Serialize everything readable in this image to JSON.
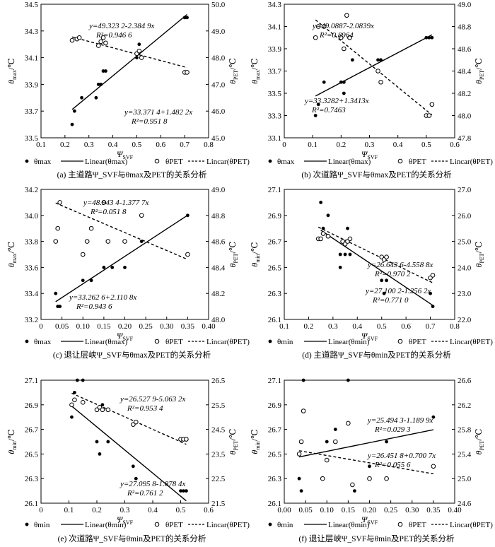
{
  "charts": [
    {
      "caption": "(a) 主道路Ψ_SVF与θmax及PET的关系分析",
      "y_label_left": "θmax/℃",
      "y_label_right": "θPET/℃",
      "x_label": "ΨSVF",
      "legend": [
        "θmax",
        "Linear(θmax)",
        "θPET",
        "Lincar(θPET)"
      ]
    },
    {
      "caption": "(b) 次道路Ψ_SVF与θmax及PET的关系分析",
      "y_label_left": "θmax/℃",
      "y_label_right": "θPET/℃",
      "x_label": "ΨSVF",
      "legend": [
        "θmax",
        "Linear(θmax)",
        "θPET",
        "Lincar(θPET)"
      ]
    },
    {
      "caption": "(c) 退让层峡Ψ_SVF与θmax及PET的关系分析",
      "y_label_left": "θmax/℃",
      "y_label_right": "θPET/℃",
      "x_label": "ΨSVF",
      "legend": [
        "θmax",
        "Linear(θmax)",
        "θPET",
        "Lincar(θPET)"
      ]
    },
    {
      "caption": "(d) 主道路Ψ_SVF与θmin及PET的关系分析",
      "y_label_left": "θmin/℃",
      "y_label_right": "θPET/℃",
      "x_label": "ΨSVF",
      "legend": [
        "θmin",
        "Linear(θmin)",
        "θPET",
        "Lincar(θPET)"
      ]
    },
    {
      "caption": "(e) 次道路Ψ_SVF与θmin及PET的关系分析",
      "y_label_left": "θmin/℃",
      "y_label_right": "θPET/℃",
      "x_label": "ΨSVF",
      "legend": [
        "θmin",
        "Linear(θmin)",
        "θPET",
        "Lincar(θPET)"
      ]
    },
    {
      "caption": "(f) 退让层峡Ψ_SVF与θmin及PET的关系分析",
      "y_label_left": "θmin/℃",
      "y_label_right": "θPET/℃",
      "x_label": "ΨSVF",
      "legend": [
        "θmin",
        "Linear(θmin)",
        "θPET",
        "Lincar(θPET)"
      ]
    }
  ],
  "chart_data": [
    {
      "type": "scatter",
      "x_ticks": [
        "0.1",
        "0.2",
        "0.3",
        "0.4",
        "0.5",
        "0.6",
        "0.7",
        "0.8"
      ],
      "xlim": [
        0.1,
        0.8
      ],
      "ylim_left": [
        33.5,
        34.5
      ],
      "y_ticks_left": [
        "33.5",
        "33.7",
        "33.9",
        "34.1",
        "34.3",
        "34.5"
      ],
      "ylim_right": [
        45.0,
        50.0
      ],
      "y_ticks_right": [
        "45.0",
        "46.0",
        "47.0",
        "48.0",
        "49.0",
        "50.0"
      ],
      "eq_left": "y=33.371 4+1.482 2x",
      "r2_left": "R²=0.951 8",
      "eq_right": "y=49.323 2-2.384 9x",
      "r2_right": "R²=0.946 6",
      "fit_left": [
        33.371,
        1.4822
      ],
      "fit_right": [
        49.3232,
        -2.3849
      ],
      "series_left": [
        [
          0.23,
          33.6
        ],
        [
          0.24,
          33.7
        ],
        [
          0.27,
          33.8
        ],
        [
          0.33,
          33.8
        ],
        [
          0.34,
          33.9
        ],
        [
          0.35,
          33.9
        ],
        [
          0.36,
          34.0
        ],
        [
          0.37,
          34.0
        ],
        [
          0.5,
          34.1
        ],
        [
          0.51,
          34.2
        ],
        [
          0.7,
          34.4
        ],
        [
          0.71,
          34.4
        ]
      ],
      "series_right": [
        [
          0.23,
          48.65
        ],
        [
          0.25,
          48.7
        ],
        [
          0.26,
          48.75
        ],
        [
          0.34,
          48.45
        ],
        [
          0.35,
          48.6
        ],
        [
          0.36,
          48.75
        ],
        [
          0.37,
          48.55
        ],
        [
          0.5,
          48.15
        ],
        [
          0.51,
          48.25
        ],
        [
          0.52,
          48.0
        ],
        [
          0.7,
          47.45
        ],
        [
          0.71,
          47.45
        ]
      ]
    },
    {
      "type": "scatter",
      "x_ticks": [
        "0",
        "0.1",
        "0.2",
        "0.3",
        "0.4",
        "0.5",
        "0.6"
      ],
      "xlim": [
        0,
        0.6
      ],
      "ylim_left": [
        33.1,
        34.3
      ],
      "y_ticks_left": [
        "33.1",
        "33.3",
        "33.5",
        "33.7",
        "33.9",
        "34.1",
        "34.3"
      ],
      "ylim_right": [
        47.8,
        49.0
      ],
      "y_ticks_right": [
        "47.8",
        "48.0",
        "48.2",
        "48.4",
        "48.6",
        "48.8",
        "49.0"
      ],
      "eq_left": "y=33.3282+1.3413x",
      "r2_left": "R²=0.7463",
      "eq_right": "y=49.0887-2.0839x",
      "r2_right": "R²=0.8964",
      "fit_left": [
        33.3282,
        1.3413
      ],
      "fit_right": [
        49.0887,
        -2.0839
      ],
      "series_left": [
        [
          0.11,
          33.3
        ],
        [
          0.12,
          33.4
        ],
        [
          0.14,
          33.6
        ],
        [
          0.2,
          33.6
        ],
        [
          0.21,
          33.6
        ],
        [
          0.21,
          33.5
        ],
        [
          0.24,
          33.8
        ],
        [
          0.33,
          33.8
        ],
        [
          0.34,
          33.8
        ],
        [
          0.5,
          34.0
        ],
        [
          0.51,
          34.0
        ],
        [
          0.52,
          34.0
        ]
      ],
      "series_right": [
        [
          0.11,
          48.7
        ],
        [
          0.12,
          48.8
        ],
        [
          0.14,
          48.8
        ],
        [
          0.2,
          48.7
        ],
        [
          0.21,
          48.6
        ],
        [
          0.22,
          48.9
        ],
        [
          0.23,
          48.7
        ],
        [
          0.33,
          48.4
        ],
        [
          0.34,
          48.3
        ],
        [
          0.5,
          48.0
        ],
        [
          0.51,
          48.0
        ],
        [
          0.52,
          48.1
        ]
      ]
    },
    {
      "type": "scatter",
      "x_ticks": [
        "0",
        "0.05",
        "0.10",
        "0.15",
        "0.20",
        "0.25",
        "0.30",
        "0.35",
        "0.40"
      ],
      "xlim": [
        0,
        0.4
      ],
      "ylim_left": [
        33.2,
        34.2
      ],
      "y_ticks_left": [
        "33.2",
        "33.4",
        "33.6",
        "33.8",
        "34.0",
        "34.2"
      ],
      "ylim_right": [
        48.0,
        49.0
      ],
      "y_ticks_right": [
        "48.0",
        "48.2",
        "48.4",
        "48.6",
        "48.8",
        "49.0"
      ],
      "eq_left": "y=33.262 6+2.110 8x",
      "r2_left": "R²=0.943 6",
      "eq_right": "y=48.943 4-1.377 7x",
      "r2_right": "R²=0.051 8",
      "fit_left": [
        33.2626,
        2.1108
      ],
      "fit_right": [
        48.9434,
        -1.3777
      ],
      "series_left": [
        [
          0.035,
          33.4
        ],
        [
          0.04,
          33.3
        ],
        [
          0.045,
          33.3
        ],
        [
          0.1,
          33.5
        ],
        [
          0.12,
          33.5
        ],
        [
          0.15,
          33.6
        ],
        [
          0.17,
          33.6
        ],
        [
          0.2,
          33.6
        ],
        [
          0.24,
          33.8
        ],
        [
          0.35,
          34.0
        ]
      ],
      "series_right": [
        [
          0.035,
          48.6
        ],
        [
          0.04,
          48.7
        ],
        [
          0.045,
          48.9
        ],
        [
          0.1,
          48.5
        ],
        [
          0.11,
          48.6
        ],
        [
          0.12,
          48.7
        ],
        [
          0.15,
          48.9
        ],
        [
          0.16,
          48.6
        ],
        [
          0.2,
          48.6
        ],
        [
          0.24,
          48.8
        ],
        [
          0.35,
          48.5
        ]
      ]
    },
    {
      "type": "scatter",
      "x_ticks": [
        "0.1",
        "0.2",
        "0.3",
        "0.4",
        "0.5",
        "0.6",
        "0.7",
        "0.8"
      ],
      "xlim": [
        0.1,
        0.8
      ],
      "ylim_left": [
        26.1,
        27.1
      ],
      "y_ticks_left": [
        "26.1",
        "26.3",
        "26.5",
        "26.7",
        "26.9",
        "27.1"
      ],
      "ylim_right": [
        22.0,
        27.0
      ],
      "y_ticks_right": [
        "22.0",
        "23.0",
        "24.0",
        "25.0",
        "26.0",
        "27.0"
      ],
      "eq_left": "y=27.100 2-1.256 2x",
      "r2_left": "R²=0.771 0",
      "eq_right": "y=26.643 6-4.558 8x",
      "r2_right": "R²=0.970 2",
      "fit_left": [
        27.1002,
        -1.2562
      ],
      "fit_right": [
        26.6436,
        -4.5588
      ],
      "series_left": [
        [
          0.25,
          27.0
        ],
        [
          0.26,
          26.8
        ],
        [
          0.28,
          26.9
        ],
        [
          0.33,
          26.6
        ],
        [
          0.33,
          26.5
        ],
        [
          0.34,
          26.7
        ],
        [
          0.35,
          26.6
        ],
        [
          0.36,
          26.8
        ],
        [
          0.37,
          26.6
        ],
        [
          0.5,
          26.4
        ],
        [
          0.51,
          26.3
        ],
        [
          0.52,
          26.4
        ],
        [
          0.7,
          26.3
        ],
        [
          0.71,
          26.2
        ]
      ],
      "series_right": [
        [
          0.24,
          25.1
        ],
        [
          0.25,
          25.1
        ],
        [
          0.26,
          25.3
        ],
        [
          0.28,
          25.2
        ],
        [
          0.34,
          25.0
        ],
        [
          0.35,
          24.9
        ],
        [
          0.36,
          25.0
        ],
        [
          0.37,
          25.1
        ],
        [
          0.5,
          24.4
        ],
        [
          0.51,
          24.3
        ],
        [
          0.52,
          24.4
        ],
        [
          0.7,
          23.6
        ],
        [
          0.71,
          23.7
        ]
      ]
    },
    {
      "type": "scatter",
      "x_ticks": [
        "0",
        "0.1",
        "0.2",
        "0.3",
        "0.4",
        "0.5",
        "0.6"
      ],
      "xlim": [
        0,
        0.6
      ],
      "ylim_left": [
        26.1,
        27.1
      ],
      "y_ticks_left": [
        "26.1",
        "26.3",
        "26.5",
        "26.7",
        "26.9",
        "27.1"
      ],
      "ylim_right": [
        21.5,
        26.5
      ],
      "y_ticks_right": [
        "21.5",
        "22.5",
        "23.5",
        "24.5",
        "25.5",
        "26.5"
      ],
      "eq_left": "y=27.095 8-1.878 4x",
      "r2_left": "R²=0.761 2",
      "eq_right": "y=26.527 9-5.063 2x",
      "r2_right": "R²=0.953 4",
      "fit_left": [
        27.0958,
        -1.8784
      ],
      "fit_right": [
        26.5279,
        -5.0632
      ],
      "series_left": [
        [
          0.11,
          26.8
        ],
        [
          0.12,
          27.0
        ],
        [
          0.13,
          27.1
        ],
        [
          0.15,
          27.1
        ],
        [
          0.2,
          26.6
        ],
        [
          0.21,
          26.5
        ],
        [
          0.22,
          26.9
        ],
        [
          0.24,
          26.6
        ],
        [
          0.33,
          26.4
        ],
        [
          0.34,
          26.3
        ],
        [
          0.5,
          26.2
        ],
        [
          0.51,
          26.2
        ],
        [
          0.52,
          26.2
        ]
      ],
      "series_right": [
        [
          0.11,
          25.5
        ],
        [
          0.12,
          25.7
        ],
        [
          0.15,
          25.6
        ],
        [
          0.2,
          25.3
        ],
        [
          0.21,
          25.4
        ],
        [
          0.22,
          25.3
        ],
        [
          0.24,
          25.3
        ],
        [
          0.33,
          24.7
        ],
        [
          0.34,
          24.8
        ],
        [
          0.5,
          24.1
        ],
        [
          0.51,
          24.1
        ],
        [
          0.52,
          24.1
        ]
      ]
    },
    {
      "type": "scatter",
      "x_ticks": [
        "0.00",
        "0.05",
        "0.10",
        "0.15",
        "0.20",
        "0.25",
        "0.30",
        "0.35",
        "0.40"
      ],
      "xlim": [
        0,
        0.4
      ],
      "ylim_left": [
        26.1,
        27.1
      ],
      "y_ticks_left": [
        "26.1",
        "26.3",
        "26.5",
        "26.7",
        "26.9",
        "27.1"
      ],
      "ylim_right": [
        24.6,
        26.6
      ],
      "y_ticks_right": [
        "24.6",
        "25.0",
        "25.4",
        "25.8",
        "26.2",
        "26.6"
      ],
      "eq_left": "y=26.451 8+0.700 7x",
      "r2_left": "R²=0.055 6",
      "eq_right": "y=25.494 3-1.189 9x",
      "r2_right": "R²=0.029 3",
      "fit_left": [
        26.4518,
        0.7007
      ],
      "fit_right": [
        25.4943,
        -1.1899
      ],
      "series_left": [
        [
          0.035,
          26.3
        ],
        [
          0.04,
          26.2
        ],
        [
          0.045,
          27.1
        ],
        [
          0.09,
          26.3
        ],
        [
          0.1,
          26.6
        ],
        [
          0.12,
          26.7
        ],
        [
          0.15,
          27.1
        ],
        [
          0.165,
          26.2
        ],
        [
          0.2,
          26.4
        ],
        [
          0.24,
          26.6
        ],
        [
          0.35,
          26.8
        ]
      ],
      "series_right": [
        [
          0.035,
          25.4
        ],
        [
          0.04,
          25.6
        ],
        [
          0.045,
          26.1
        ],
        [
          0.09,
          25.0
        ],
        [
          0.1,
          25.3
        ],
        [
          0.12,
          25.6
        ],
        [
          0.15,
          25.9
        ],
        [
          0.16,
          24.9
        ],
        [
          0.2,
          25.0
        ],
        [
          0.24,
          25.0
        ],
        [
          0.35,
          25.2
        ]
      ]
    }
  ]
}
